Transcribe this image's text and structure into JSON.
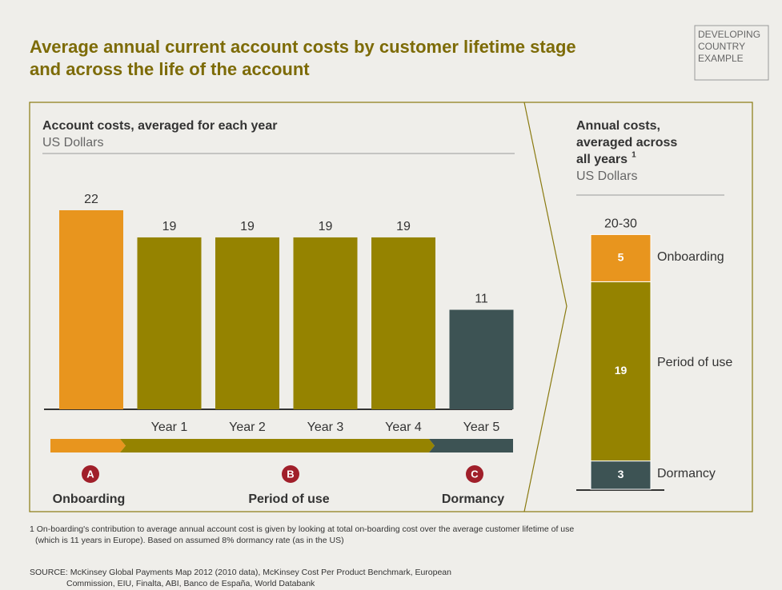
{
  "title": [
    "Average annual current account costs by customer lifetime stage",
    "and across the life of the account"
  ],
  "tag": [
    "DEVELOPING",
    "COUNTRY",
    "EXAMPLE"
  ],
  "chart_data": [
    {
      "type": "bar",
      "title": "Account costs, averaged for each year",
      "subtitle": "US Dollars",
      "categories": [
        null,
        "Year 1",
        "Year 2",
        "Year 3",
        "Year 4",
        "Year 5"
      ],
      "values": [
        22,
        19,
        19,
        19,
        19,
        11
      ],
      "colors": [
        "#e8951e",
        "#958300",
        "#958300",
        "#958300",
        "#958300",
        "#3d5354"
      ]
    },
    {
      "type": "stacked_bar",
      "title": [
        "Annual costs,",
        "averaged across",
        "all years"
      ],
      "footnote_marker": "1",
      "subtitle": "US Dollars",
      "total_label": "20-30",
      "series": [
        {
          "name": "Dormancy",
          "color": "#3d5354",
          "values": [
            3
          ]
        },
        {
          "name": "Period of use",
          "color": "#958300",
          "values": [
            19
          ]
        },
        {
          "name": "Onboarding",
          "color": "#e8951e",
          "values": [
            5
          ]
        }
      ]
    }
  ],
  "stages": [
    {
      "letter": "A",
      "label": "Onboarding"
    },
    {
      "letter": "B",
      "label": "Period of use"
    },
    {
      "letter": "C",
      "label": "Dormancy"
    }
  ],
  "footnote": [
    "1 On-boarding's contribution to average annual account cost is given by looking at total on-boarding cost over the average customer lifetime of use",
    "(which is 11 years in Europe).  Based on assumed 8% dormancy rate (as in the US)"
  ],
  "source": [
    "SOURCE: McKinsey Global Payments Map 2012 (2010 data), McKinsey Cost Per Product Benchmark, European",
    "Commission, EIU, Finalta, ABI, Banco de España, World Databank"
  ]
}
